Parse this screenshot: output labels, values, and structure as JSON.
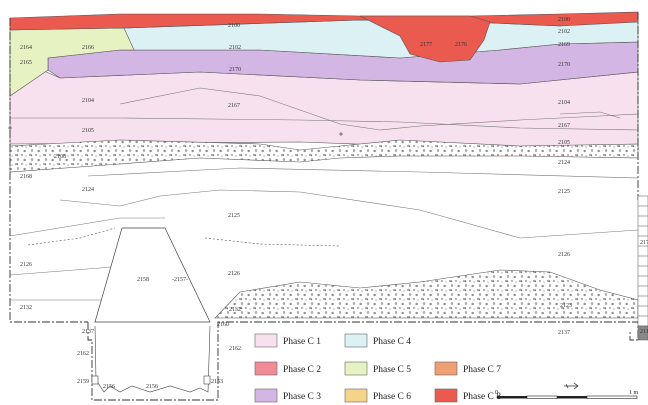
{
  "colors": {
    "phase_c1": "#f7e1ef",
    "phase_c2": "#f08a96",
    "phase_c3": "#d3b6e4",
    "phase_c4": "#dcf1f3",
    "phase_c5": "#e7f2c2",
    "phase_c6": "#f6d487",
    "phase_c7": "#ef9f72",
    "phase_c8": "#ea5a4e",
    "outline": "#555555"
  },
  "contexts": {
    "c2100": "2100",
    "c2100_right": "2100",
    "c2164": "2164",
    "c2166": "2166",
    "c2165": "2165",
    "c2102": "2102",
    "c2102_right": "2102",
    "c2177": "2177",
    "c2176": "2176",
    "c2169": "2169",
    "c2170": "2170",
    "c2170_right": "2170",
    "c2104": "2104",
    "c2104_right": "2104",
    "c2167": "2167",
    "c2167_right": "2167",
    "c2105": "2105",
    "c2105_right": "2105",
    "c2108": "2108",
    "c2124": "2124",
    "c2124_right": "2124",
    "c2168": "2168",
    "c2125": "2125",
    "c2125_right": "2125",
    "c2126": "2126",
    "c2126_mid": "2126",
    "c2126_right": "2126",
    "c2158": "2158",
    "c2157": "-2157-",
    "c2132": "2132",
    "c2132_mid": "2132",
    "c2123": "2123",
    "c2137": "2137",
    "c2137_right": "2137",
    "c2160": "2160",
    "c2162": "2162",
    "c2162_right": "2162",
    "c2159": "2159",
    "c2156": "2156",
    "c2156_b": "2156",
    "c2153": "2153",
    "c2173": "2173",
    "c2113": "2113"
  },
  "legend": [
    {
      "label": "Phase C 1",
      "color": "#f7e1ef"
    },
    {
      "label": "Phase C 4",
      "color": "#dcf1f3"
    },
    {
      "label": "Phase C 2",
      "color": "#f08a96"
    },
    {
      "label": "Phase C 5",
      "color": "#e7f2c2"
    },
    {
      "label": "Phase C 7",
      "color": "#ef9f72"
    },
    {
      "label": "Phase C 3",
      "color": "#d3b6e4"
    },
    {
      "label": "Phase C 6",
      "color": "#f6d487"
    },
    {
      "label": "Phase C 8",
      "color": "#ea5a4e"
    }
  ],
  "scale": {
    "start": "0",
    "end": "1 m"
  }
}
